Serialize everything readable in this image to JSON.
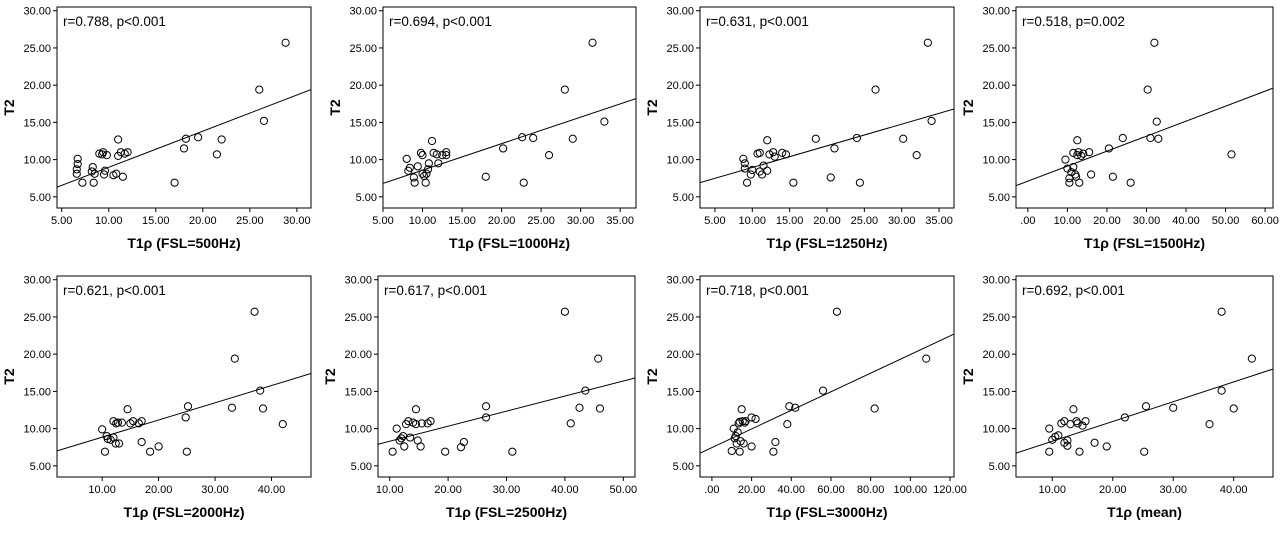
{
  "chart_data": [
    {
      "type": "scatter",
      "annotation": "r=0.788, p<0.001",
      "xlabel": "T1ρ (FSL=500Hz)",
      "ylabel": "T2",
      "xlim": [
        4.5,
        31.5
      ],
      "ylim": [
        3.5,
        30.5
      ],
      "xticks": [
        "5.00",
        "10.00",
        "15.00",
        "20.00",
        "25.00",
        "30.00"
      ],
      "yticks": [
        "5.00",
        "10.00",
        "15.00",
        "20.00",
        "25.00",
        "30.00"
      ],
      "points": [
        [
          6.6,
          8.1
        ],
        [
          6.6,
          8.7
        ],
        [
          6.7,
          9.4
        ],
        [
          6.7,
          10.1
        ],
        [
          7.2,
          6.9
        ],
        [
          8.2,
          8.4
        ],
        [
          8.3,
          9.0
        ],
        [
          8.4,
          6.9
        ],
        [
          8.5,
          8.1
        ],
        [
          9.0,
          10.8
        ],
        [
          9.3,
          10.7
        ],
        [
          9.4,
          11.0
        ],
        [
          9.5,
          8.0
        ],
        [
          9.6,
          8.5
        ],
        [
          9.8,
          10.6
        ],
        [
          10.5,
          7.9
        ],
        [
          10.8,
          8.1
        ],
        [
          11.0,
          10.5
        ],
        [
          11.0,
          12.7
        ],
        [
          11.3,
          11.0
        ],
        [
          11.5,
          7.7
        ],
        [
          11.7,
          10.8
        ],
        [
          12.0,
          11.0
        ],
        [
          17.0,
          6.9
        ],
        [
          18.0,
          11.5
        ],
        [
          18.2,
          12.8
        ],
        [
          19.5,
          13.0
        ],
        [
          21.5,
          10.7
        ],
        [
          22.0,
          12.7
        ],
        [
          26.0,
          19.4
        ],
        [
          26.5,
          15.2
        ],
        [
          28.8,
          25.7
        ]
      ],
      "fit": [
        [
          4.5,
          6.3
        ],
        [
          31.5,
          19.4
        ]
      ]
    },
    {
      "type": "scatter",
      "annotation": "r=0.694, p<0.001",
      "xlabel": "T1ρ (FSL=1000Hz)",
      "ylabel": "T2",
      "xlim": [
        5.0,
        37.0
      ],
      "ylim": [
        3.5,
        30.5
      ],
      "xticks": [
        "5.00",
        "10.00",
        "15.00",
        "20.00",
        "25.00",
        "30.00",
        "35.00"
      ],
      "yticks": [
        "5.00",
        "10.00",
        "15.00",
        "20.00",
        "25.00",
        "30.00"
      ],
      "points": [
        [
          8.0,
          10.1
        ],
        [
          8.2,
          8.5
        ],
        [
          8.4,
          8.9
        ],
        [
          8.9,
          7.6
        ],
        [
          9.0,
          6.9
        ],
        [
          9.4,
          9.1
        ],
        [
          9.8,
          10.9
        ],
        [
          10.0,
          10.6
        ],
        [
          10.0,
          8.1
        ],
        [
          10.2,
          7.8
        ],
        [
          10.4,
          6.9
        ],
        [
          10.5,
          8.1
        ],
        [
          10.7,
          8.7
        ],
        [
          10.8,
          9.5
        ],
        [
          11.2,
          12.5
        ],
        [
          11.4,
          10.9
        ],
        [
          11.8,
          10.7
        ],
        [
          12.0,
          9.5
        ],
        [
          12.5,
          10.6
        ],
        [
          13.0,
          11.0
        ],
        [
          13.0,
          10.6
        ],
        [
          18.0,
          7.7
        ],
        [
          20.2,
          11.5
        ],
        [
          22.6,
          13.0
        ],
        [
          22.8,
          6.9
        ],
        [
          24.0,
          12.9
        ],
        [
          26.0,
          10.6
        ],
        [
          28.0,
          19.4
        ],
        [
          29.0,
          12.8
        ],
        [
          31.5,
          25.7
        ],
        [
          33.0,
          15.1
        ]
      ],
      "fit": [
        [
          5.0,
          6.8
        ],
        [
          37.0,
          18.2
        ]
      ]
    },
    {
      "type": "scatter",
      "annotation": "r=0.631, p<0.001",
      "xlabel": "T1ρ (FSL=1250Hz)",
      "ylabel": "T2",
      "xlim": [
        3.0,
        37.0
      ],
      "ylim": [
        3.5,
        30.5
      ],
      "xticks": [
        "5.00",
        "10.00",
        "15.00",
        "20.00",
        "25.00",
        "30.00",
        "35.00"
      ],
      "yticks": [
        "5.00",
        "10.00",
        "15.00",
        "20.00",
        "25.00",
        "30.00"
      ],
      "points": [
        [
          8.8,
          10.1
        ],
        [
          9.0,
          9.5
        ],
        [
          9.0,
          8.8
        ],
        [
          9.3,
          6.9
        ],
        [
          9.8,
          8.0
        ],
        [
          10.0,
          8.6
        ],
        [
          10.7,
          10.8
        ],
        [
          11.0,
          10.9
        ],
        [
          11.0,
          8.4
        ],
        [
          11.3,
          8.0
        ],
        [
          11.5,
          9.2
        ],
        [
          12.0,
          12.6
        ],
        [
          12.0,
          8.5
        ],
        [
          12.3,
          10.7
        ],
        [
          12.8,
          11.0
        ],
        [
          13.0,
          10.4
        ],
        [
          14.0,
          10.9
        ],
        [
          14.5,
          10.7
        ],
        [
          15.5,
          6.9
        ],
        [
          18.5,
          12.8
        ],
        [
          20.5,
          7.6
        ],
        [
          21.0,
          11.5
        ],
        [
          24.0,
          12.9
        ],
        [
          24.4,
          6.9
        ],
        [
          26.5,
          19.4
        ],
        [
          30.2,
          12.8
        ],
        [
          32.0,
          10.6
        ],
        [
          33.5,
          25.7
        ],
        [
          34.0,
          15.2
        ]
      ],
      "fit": [
        [
          3.0,
          6.9
        ],
        [
          37.0,
          16.8
        ]
      ]
    },
    {
      "type": "scatter",
      "annotation": "r=0.518, p=0.002",
      "xlabel": "T1ρ (FSL=1500Hz)",
      "ylabel": "T2",
      "xlim": [
        -3.0,
        62.0
      ],
      "ylim": [
        3.5,
        30.5
      ],
      "xticks": [
        ".00",
        "10.00",
        "20.00",
        "30.00",
        "40.00",
        "50.00",
        "60.00"
      ],
      "yticks": [
        "5.00",
        "10.00",
        "15.00",
        "20.00",
        "25.00",
        "30.00"
      ],
      "points": [
        [
          9.5,
          10.0
        ],
        [
          10.0,
          8.8
        ],
        [
          10.5,
          7.5
        ],
        [
          10.5,
          6.9
        ],
        [
          11.0,
          8.3
        ],
        [
          11.5,
          9.0
        ],
        [
          11.5,
          10.9
        ],
        [
          12.0,
          8.0
        ],
        [
          12.2,
          7.7
        ],
        [
          12.5,
          12.6
        ],
        [
          12.5,
          10.6
        ],
        [
          12.8,
          11.0
        ],
        [
          13.0,
          6.9
        ],
        [
          13.5,
          10.5
        ],
        [
          14.0,
          10.8
        ],
        [
          15.5,
          11.0
        ],
        [
          16.0,
          8.0
        ],
        [
          20.5,
          11.5
        ],
        [
          21.5,
          7.7
        ],
        [
          24.0,
          12.9
        ],
        [
          26.0,
          6.9
        ],
        [
          30.3,
          19.4
        ],
        [
          31.0,
          12.9
        ],
        [
          32.0,
          25.7
        ],
        [
          32.6,
          15.1
        ],
        [
          33.0,
          12.8
        ],
        [
          51.5,
          10.7
        ]
      ],
      "fit": [
        [
          -3.0,
          6.5
        ],
        [
          62.0,
          19.6
        ]
      ]
    },
    {
      "type": "scatter",
      "annotation": "r=0.621, p<0.001",
      "xlabel": "T1ρ (FSL=2000Hz)",
      "ylabel": "T2",
      "xlim": [
        2.0,
        47.0
      ],
      "ylim": [
        3.5,
        30.5
      ],
      "xticks": [
        "10.00",
        "20.00",
        "30.00",
        "40.00"
      ],
      "yticks": [
        "5.00",
        "10.00",
        "15.00",
        "20.00",
        "25.00",
        "30.00"
      ],
      "points": [
        [
          10.0,
          9.9
        ],
        [
          10.5,
          6.9
        ],
        [
          10.8,
          9.0
        ],
        [
          11.0,
          8.6
        ],
        [
          11.5,
          8.5
        ],
        [
          12.0,
          11.0
        ],
        [
          12.0,
          8.8
        ],
        [
          12.4,
          8.0
        ],
        [
          12.5,
          10.7
        ],
        [
          12.8,
          10.8
        ],
        [
          13.0,
          8.0
        ],
        [
          13.5,
          10.8
        ],
        [
          14.5,
          12.6
        ],
        [
          15.0,
          10.7
        ],
        [
          15.5,
          11.0
        ],
        [
          16.5,
          10.7
        ],
        [
          17.0,
          11.0
        ],
        [
          17.0,
          8.2
        ],
        [
          18.5,
          6.9
        ],
        [
          20.0,
          7.6
        ],
        [
          24.8,
          11.5
        ],
        [
          25.0,
          6.9
        ],
        [
          25.2,
          13.0
        ],
        [
          33.0,
          12.8
        ],
        [
          33.5,
          19.4
        ],
        [
          37.0,
          25.7
        ],
        [
          38.0,
          15.1
        ],
        [
          38.5,
          12.7
        ],
        [
          42.0,
          10.6
        ]
      ],
      "fit": [
        [
          2.0,
          7.0
        ],
        [
          47.0,
          17.4
        ]
      ]
    },
    {
      "type": "scatter",
      "annotation": "r=0.617, p<0.001",
      "xlabel": "T1ρ (FSL=2500Hz)",
      "ylabel": "T2",
      "xlim": [
        8.0,
        52.0
      ],
      "ylim": [
        3.5,
        30.5
      ],
      "xticks": [
        "10.00",
        "20.00",
        "30.00",
        "40.00",
        "50.00"
      ],
      "yticks": [
        "5.00",
        "10.00",
        "15.00",
        "20.00",
        "25.00",
        "30.00"
      ],
      "points": [
        [
          10.5,
          6.9
        ],
        [
          11.2,
          10.0
        ],
        [
          11.7,
          8.4
        ],
        [
          12.0,
          8.7
        ],
        [
          12.3,
          9.0
        ],
        [
          12.5,
          7.6
        ],
        [
          12.8,
          10.6
        ],
        [
          13.2,
          11.0
        ],
        [
          13.5,
          8.8
        ],
        [
          14.0,
          10.8
        ],
        [
          14.5,
          10.6
        ],
        [
          14.5,
          12.6
        ],
        [
          14.8,
          8.4
        ],
        [
          15.3,
          7.6
        ],
        [
          15.5,
          10.7
        ],
        [
          16.5,
          10.7
        ],
        [
          17.0,
          11.0
        ],
        [
          19.5,
          6.9
        ],
        [
          22.2,
          7.5
        ],
        [
          22.7,
          8.2
        ],
        [
          26.5,
          11.5
        ],
        [
          26.5,
          13.0
        ],
        [
          31.0,
          6.9
        ],
        [
          40.0,
          25.7
        ],
        [
          41.0,
          10.7
        ],
        [
          42.5,
          12.8
        ],
        [
          43.5,
          15.1
        ],
        [
          45.7,
          19.4
        ],
        [
          46.0,
          12.7
        ]
      ],
      "fit": [
        [
          8.0,
          7.9
        ],
        [
          52.0,
          16.8
        ]
      ]
    },
    {
      "type": "scatter",
      "annotation": "r=0.718, p<0.001",
      "xlabel": "T1ρ (FSL=3000Hz)",
      "ylabel": "T2",
      "xlim": [
        -6.0,
        122.0
      ],
      "ylim": [
        3.5,
        30.5
      ],
      "xticks": [
        ".00",
        "20.00",
        "40.00",
        "60.00",
        "80.00",
        "100.00",
        "120.00"
      ],
      "yticks": [
        "5.00",
        "10.00",
        "15.00",
        "20.00",
        "25.00",
        "30.00"
      ],
      "points": [
        [
          10.0,
          7.0
        ],
        [
          11.0,
          10.0
        ],
        [
          11.5,
          8.7
        ],
        [
          12.0,
          9.0
        ],
        [
          12.5,
          8.0
        ],
        [
          13.0,
          9.5
        ],
        [
          13.5,
          10.7
        ],
        [
          14.0,
          10.9
        ],
        [
          14.0,
          6.9
        ],
        [
          14.5,
          8.3
        ],
        [
          15.0,
          12.6
        ],
        [
          15.5,
          11.0
        ],
        [
          16.0,
          8.0
        ],
        [
          16.5,
          10.8
        ],
        [
          17.0,
          11.0
        ],
        [
          20.0,
          11.5
        ],
        [
          20.0,
          7.6
        ],
        [
          22.0,
          11.3
        ],
        [
          31.0,
          6.9
        ],
        [
          32.0,
          8.2
        ],
        [
          38.0,
          10.6
        ],
        [
          39.0,
          13.0
        ],
        [
          42.0,
          12.8
        ],
        [
          56.0,
          15.1
        ],
        [
          63.0,
          25.7
        ],
        [
          82.0,
          12.7
        ],
        [
          108.0,
          19.4
        ]
      ],
      "fit": [
        [
          -6.0,
          6.7
        ],
        [
          122.0,
          22.7
        ]
      ]
    },
    {
      "type": "scatter",
      "annotation": "r=0.692, p<0.001",
      "xlabel": "T1ρ (mean)",
      "ylabel": "T2",
      "xlim": [
        4.0,
        46.5
      ],
      "ylim": [
        3.5,
        30.5
      ],
      "xticks": [
        "10.00",
        "20.00",
        "30.00",
        "40.00"
      ],
      "yticks": [
        "5.00",
        "10.00",
        "15.00",
        "20.00",
        "25.00",
        "30.00"
      ],
      "points": [
        [
          9.5,
          10.0
        ],
        [
          9.5,
          6.9
        ],
        [
          10.0,
          8.5
        ],
        [
          10.5,
          8.9
        ],
        [
          11.0,
          9.1
        ],
        [
          11.5,
          10.7
        ],
        [
          12.0,
          11.0
        ],
        [
          12.0,
          8.1
        ],
        [
          12.5,
          7.7
        ],
        [
          12.5,
          8.4
        ],
        [
          13.0,
          10.6
        ],
        [
          13.5,
          12.6
        ],
        [
          14.0,
          11.0
        ],
        [
          14.2,
          10.7
        ],
        [
          14.5,
          6.9
        ],
        [
          15.0,
          10.4
        ],
        [
          15.5,
          11.0
        ],
        [
          17.0,
          8.1
        ],
        [
          19.0,
          7.6
        ],
        [
          22.0,
          11.5
        ],
        [
          25.2,
          6.9
        ],
        [
          25.5,
          13.0
        ],
        [
          30.0,
          12.8
        ],
        [
          36.0,
          10.6
        ],
        [
          38.0,
          25.7
        ],
        [
          38.0,
          15.1
        ],
        [
          40.0,
          12.7
        ],
        [
          43.0,
          19.4
        ]
      ],
      "fit": [
        [
          4.0,
          6.7
        ],
        [
          46.5,
          18.0
        ]
      ]
    }
  ]
}
